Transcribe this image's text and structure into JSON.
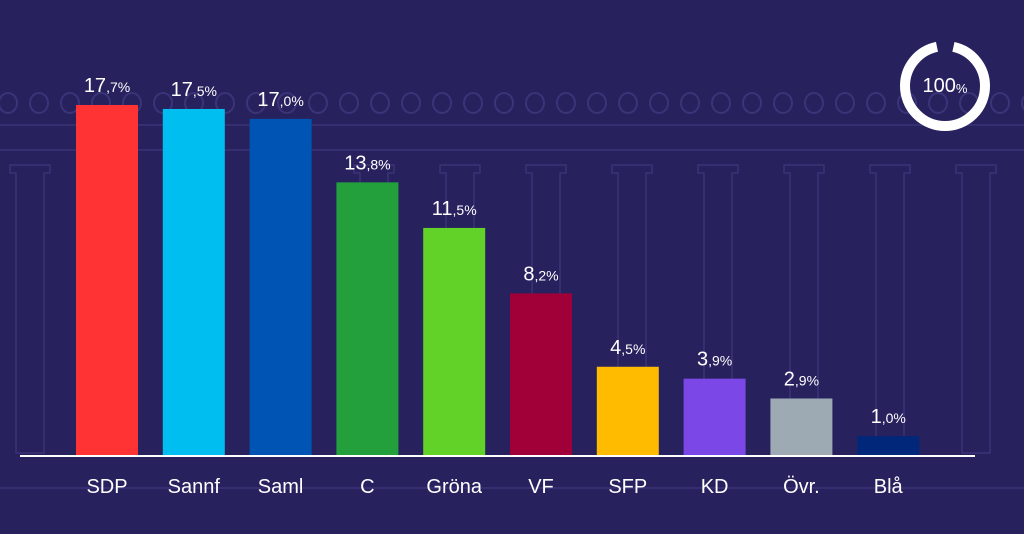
{
  "progress": {
    "value": "100",
    "unit": "%",
    "fraction": 1.0
  },
  "colors": {
    "background": "#27215e",
    "pattern": "#3a3478",
    "axis": "#ffffff",
    "ring": "#ffffff"
  },
  "chart_data": {
    "type": "bar",
    "title": "",
    "xlabel": "",
    "ylabel": "",
    "ylim": [
      0,
      17.7
    ],
    "grid": false,
    "categories": [
      "SDP",
      "Sannf",
      "Saml",
      "C",
      "Gröna",
      "VF",
      "SFP",
      "KD",
      "Övr.",
      "Blå"
    ],
    "values": [
      17.7,
      17.5,
      17.0,
      13.8,
      11.5,
      8.2,
      4.5,
      3.9,
      2.9,
      1.0
    ],
    "labels": [
      {
        "int": "17",
        "dec": ",7%"
      },
      {
        "int": "17",
        "dec": ",5%"
      },
      {
        "int": "17",
        "dec": ",0%"
      },
      {
        "int": "13",
        "dec": ",8%"
      },
      {
        "int": "11",
        "dec": ",5%"
      },
      {
        "int": "8",
        "dec": ",2%"
      },
      {
        "int": "4",
        "dec": ",5%"
      },
      {
        "int": "3",
        "dec": ",9%"
      },
      {
        "int": "2",
        "dec": ",9%"
      },
      {
        "int": "1",
        "dec": ",0%"
      }
    ],
    "bar_colors": [
      "#ff3234",
      "#00bef0",
      "#0054b4",
      "#23a03c",
      "#62d228",
      "#a00037",
      "#ffbb00",
      "#7b47e6",
      "#9eaab3",
      "#00277a"
    ]
  }
}
